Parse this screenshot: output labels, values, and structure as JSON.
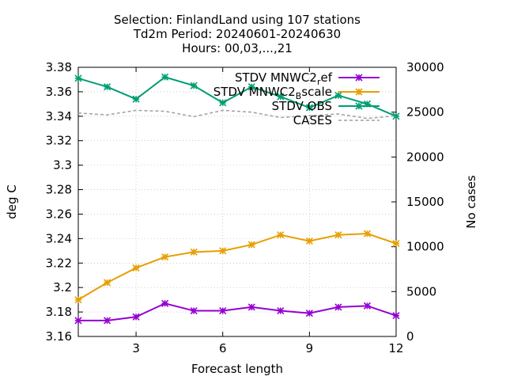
{
  "chart_data": {
    "type": "line",
    "title_lines": [
      "Selection: FinlandLand using   107 stations",
      "Td2m   Period: 20240601-20240630",
      "Hours: 00,03,...,21"
    ],
    "xlabel": "Forecast length",
    "ylabel": "deg C",
    "y2label": "No cases",
    "xlim": [
      1,
      12
    ],
    "ylim": [
      3.16,
      3.38
    ],
    "y2lim": [
      0,
      30000
    ],
    "xticks": [
      3,
      6,
      9,
      12
    ],
    "yticks": [
      "3.16",
      "3.18",
      "3.2",
      "3.22",
      "3.24",
      "3.26",
      "3.28",
      "3.3",
      "3.32",
      "3.34",
      "3.36",
      "3.38"
    ],
    "y2ticks": [
      "0",
      "5000",
      "10000",
      "15000",
      "20000",
      "25000",
      "30000"
    ],
    "grid": true,
    "legend_position": "top-right",
    "x": [
      1,
      2,
      3,
      4,
      5,
      6,
      7,
      8,
      9,
      10,
      11,
      12
    ],
    "series": [
      {
        "name": "STDV MNWC2_ref",
        "legend_main": "STDV MNWC2",
        "legend_sub": "r",
        "legend_tail": "ef",
        "color": "#9400d3",
        "axis": "y",
        "values": [
          3.173,
          3.173,
          3.176,
          3.187,
          3.181,
          3.181,
          3.184,
          3.181,
          3.179,
          3.184,
          3.185,
          3.177
        ]
      },
      {
        "name": "STDV MNWC2_Bscale",
        "legend_main": "STDV MNWC2",
        "legend_sub": "B",
        "legend_tail": "scale",
        "color": "#e69f00",
        "axis": "y",
        "values": [
          3.19,
          3.204,
          3.216,
          3.225,
          3.229,
          3.23,
          3.235,
          3.243,
          3.238,
          3.243,
          3.244,
          3.236
        ]
      },
      {
        "name": "STDV OBS",
        "legend_main": "STDV OBS",
        "legend_sub": "",
        "legend_tail": "",
        "color": "#009e73",
        "axis": "y",
        "values": [
          3.371,
          3.364,
          3.354,
          3.372,
          3.365,
          3.351,
          3.364,
          3.356,
          3.347,
          3.357,
          3.35,
          3.34
        ]
      },
      {
        "name": "CASES",
        "legend_main": "CASES",
        "legend_sub": "",
        "legend_tail": "",
        "color": "#a0a0a0",
        "axis": "y2",
        "dashed": true,
        "values": [
          24900,
          24700,
          25200,
          25100,
          24500,
          25200,
          25000,
          24400,
          24600,
          24800,
          24300,
          24600
        ]
      }
    ]
  }
}
